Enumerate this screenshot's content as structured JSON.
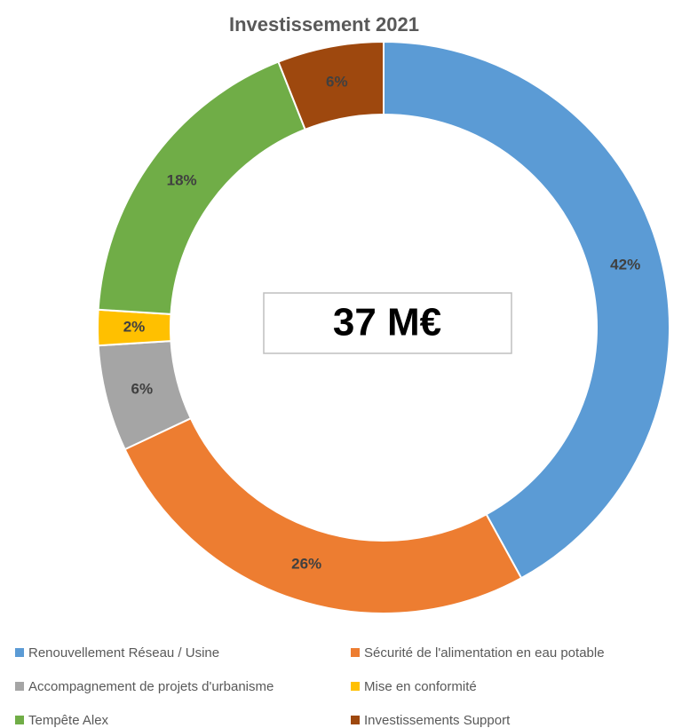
{
  "chart_data": {
    "type": "donut",
    "title": "Investissement  2021",
    "categories": [
      "Renouvellement  Réseau / Usine",
      "Sécurité de l'alimentation en eau potable",
      "Accompagnement de projets d'urbanisme",
      "Mise en conformité",
      "Tempête Alex",
      "Investissements Support"
    ],
    "values": [
      42,
      26,
      6,
      2,
      18,
      6
    ],
    "value_labels": [
      "42%",
      "26%",
      "6%",
      "2%",
      "18%",
      "6%"
    ],
    "colors": [
      "#5b9bd5",
      "#ed7d31",
      "#a5a5a5",
      "#ffc000",
      "#70ad47",
      "#9e480e"
    ],
    "center_label": "37 M€"
  }
}
